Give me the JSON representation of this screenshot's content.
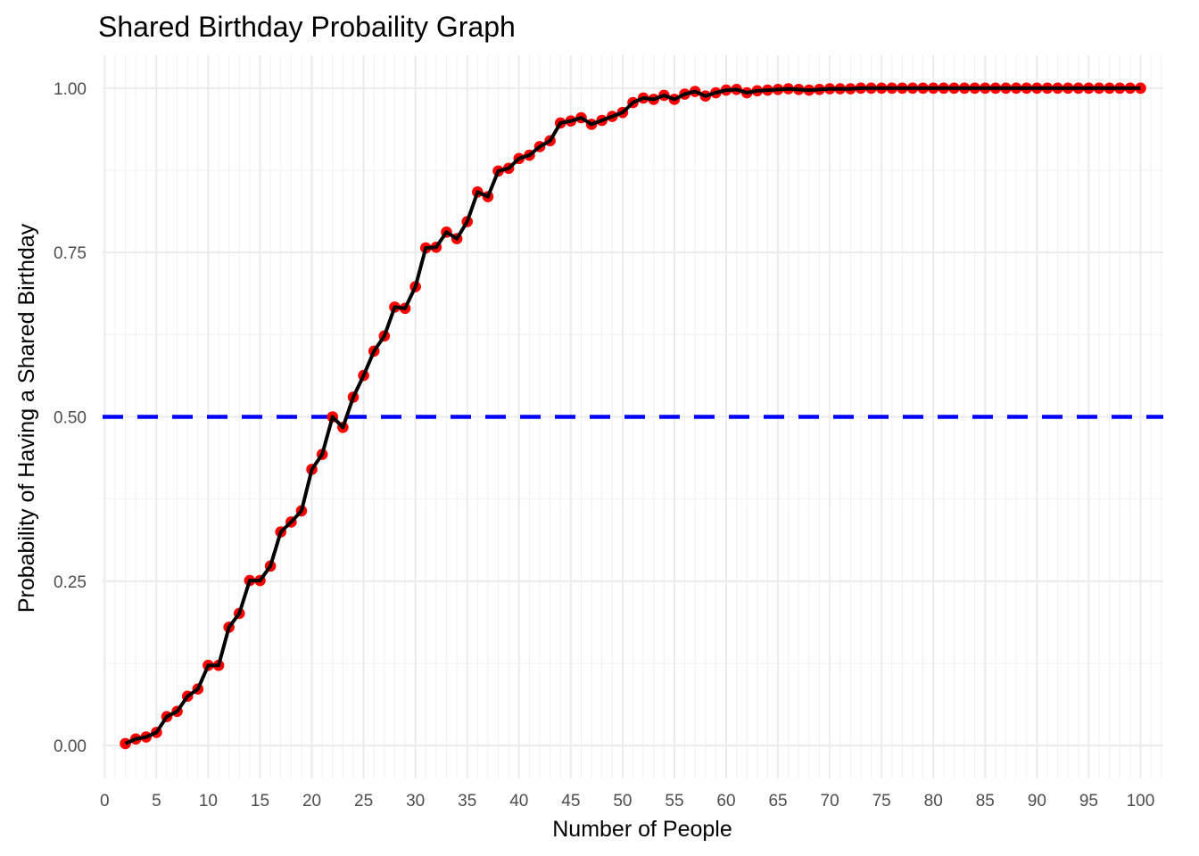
{
  "chart_data": {
    "type": "line",
    "title": "Shared Birthday Probaility Graph",
    "xlabel": "Number of People",
    "ylabel": "Probability of Having a Shared Birthday",
    "xlim": [
      -0.2,
      102.2
    ],
    "ylim": [
      -0.05,
      1.05
    ],
    "x_ticks": [
      0,
      5,
      10,
      15,
      20,
      25,
      30,
      35,
      40,
      45,
      50,
      55,
      60,
      65,
      70,
      75,
      80,
      85,
      90,
      95,
      100
    ],
    "x_tick_labels": [
      "0",
      "5",
      "10",
      "15",
      "20",
      "25",
      "30",
      "35",
      "40",
      "45",
      "50",
      "55",
      "60",
      "65",
      "70",
      "75",
      "80",
      "85",
      "90",
      "95",
      "100"
    ],
    "y_ticks": [
      0,
      0.25,
      0.5,
      0.75,
      1
    ],
    "y_tick_labels": [
      "0.00",
      "0.25",
      "0.50",
      "0.75",
      "1.00"
    ],
    "grid": true,
    "reference_line": {
      "y": 0.5,
      "style": "dashed",
      "color": "#0000ff"
    },
    "series": [
      {
        "line_color": "#000000",
        "point_color": "#ff0000",
        "x": [
          2,
          3,
          4,
          5,
          6,
          7,
          8,
          9,
          10,
          11,
          12,
          13,
          14,
          15,
          16,
          17,
          18,
          19,
          20,
          21,
          22,
          23,
          24,
          25,
          26,
          27,
          28,
          29,
          30,
          31,
          32,
          33,
          34,
          35,
          36,
          37,
          38,
          39,
          40,
          41,
          42,
          43,
          44,
          45,
          46,
          47,
          48,
          49,
          50,
          51,
          52,
          53,
          54,
          55,
          56,
          57,
          58,
          59,
          60,
          61,
          62,
          63,
          64,
          65,
          66,
          67,
          68,
          69,
          70,
          71,
          72,
          73,
          74,
          75,
          76,
          77,
          78,
          79,
          80,
          81,
          82,
          83,
          84,
          85,
          86,
          87,
          88,
          89,
          90,
          91,
          92,
          93,
          94,
          95,
          96,
          97,
          98,
          99,
          100
        ],
        "y": [
          0.003,
          0.01,
          0.013,
          0.02,
          0.044,
          0.052,
          0.075,
          0.086,
          0.122,
          0.122,
          0.18,
          0.201,
          0.251,
          0.251,
          0.273,
          0.325,
          0.34,
          0.357,
          0.42,
          0.443,
          0.5,
          0.484,
          0.53,
          0.563,
          0.6,
          0.623,
          0.667,
          0.665,
          0.698,
          0.757,
          0.758,
          0.781,
          0.771,
          0.797,
          0.842,
          0.835,
          0.874,
          0.878,
          0.893,
          0.898,
          0.911,
          0.92,
          0.947,
          0.95,
          0.955,
          0.945,
          0.951,
          0.957,
          0.963,
          0.978,
          0.985,
          0.983,
          0.989,
          0.983,
          0.991,
          0.995,
          0.988,
          0.993,
          0.997,
          0.998,
          0.993,
          0.996,
          0.997,
          0.998,
          0.999,
          0.998,
          0.997,
          0.998,
          0.999,
          0.999,
          0.999,
          1.0,
          1.0,
          1.0,
          1.0,
          1.0,
          1.0,
          1.0,
          1.0,
          1.0,
          1.0,
          1.0,
          1.0,
          1.0,
          1.0,
          1.0,
          1.0,
          1.0,
          1.0,
          1.0,
          1.0,
          1.0,
          1.0,
          1.0,
          1.0,
          1.0,
          1.0,
          1.0,
          1.0
        ]
      }
    ]
  }
}
